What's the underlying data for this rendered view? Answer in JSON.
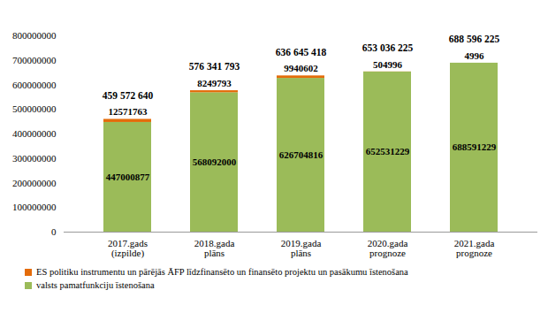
{
  "chart_data": {
    "type": "bar",
    "stacked": true,
    "data_labels": true,
    "grid": false,
    "legend": "bottom",
    "categories": [
      "2017.gads\n(izpilde)",
      "2018.gada\nplāns",
      "2019.gada\nplāns",
      "2020.gada\nprognoze",
      "2021.gada\nprognoze"
    ],
    "series": [
      {
        "name": "ES politiku instrumentu un pārējās ĀFP līdzfinansēto un finansēto projektu un pasākumu īstenošana",
        "color": "#e46c0a",
        "values": [
          12571763,
          8249793,
          9940602,
          504996,
          4996
        ]
      },
      {
        "name": "valsts pamatfunkciju īstenošana",
        "color": "#9bbb59",
        "values": [
          447000877,
          568092000,
          626704816,
          652531229,
          688591229
        ]
      }
    ],
    "totals": {
      "values": [
        459572640,
        576341793,
        636645418,
        653036225,
        688596225
      ],
      "value_labels": [
        "459 572 640",
        "576 341 793",
        "636 645 418",
        "653 036 225",
        "688 596 225"
      ]
    },
    "ylim": [
      0,
      800000000
    ],
    "yticks": [
      0,
      100000000,
      200000000,
      300000000,
      400000000,
      500000000,
      600000000,
      700000000,
      800000000
    ]
  }
}
